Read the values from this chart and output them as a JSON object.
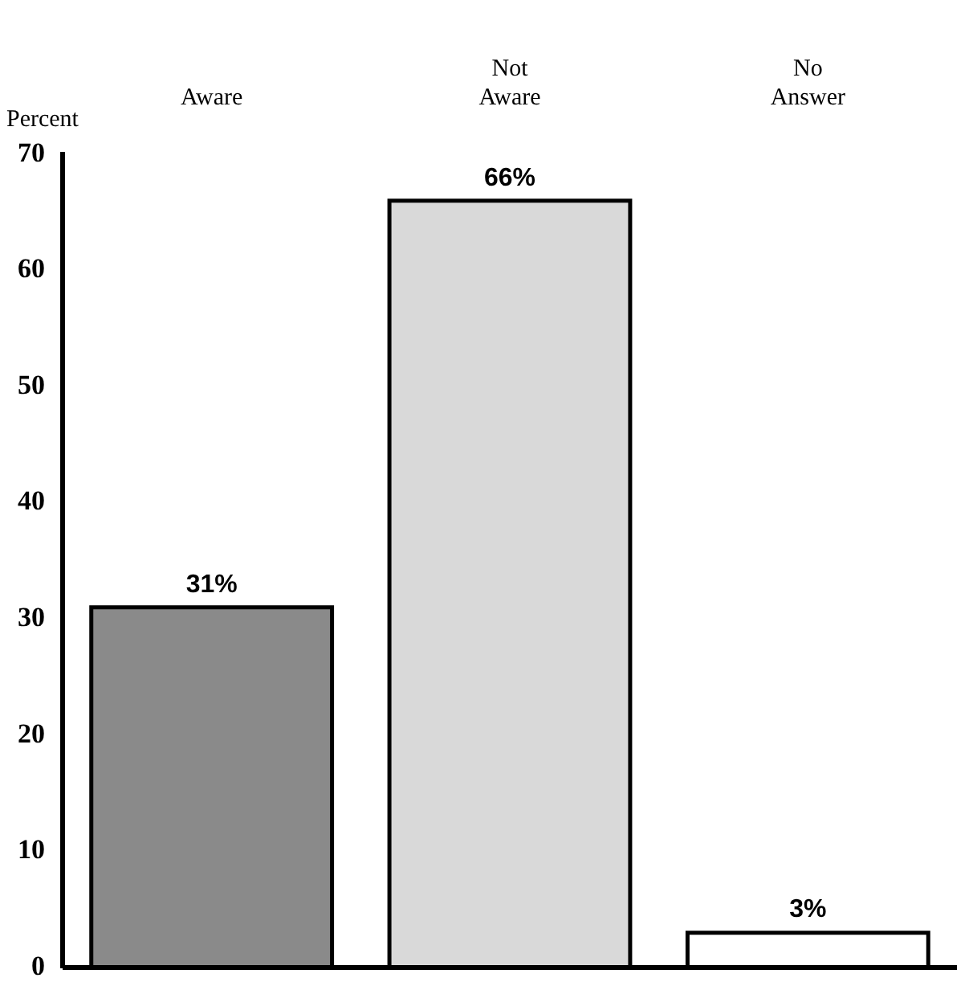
{
  "chart_data": {
    "type": "bar",
    "ylabel": "Percent",
    "categories": [
      "Aware",
      "Not Aware",
      "No Answer"
    ],
    "values": [
      31,
      66,
      3
    ],
    "colors": [
      "#8a8a8a",
      "#d9d9d9",
      "#ffffff"
    ],
    "value_labels": [
      "31%",
      "66%",
      "3%"
    ],
    "ylim": [
      0,
      70
    ],
    "yticks": [
      0,
      10,
      20,
      30,
      40,
      50,
      60,
      70
    ],
    "grid": false,
    "legend": false
  }
}
